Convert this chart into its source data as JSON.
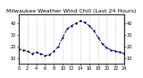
{
  "title": "Milwaukee Weather Wind Chill (Last 24 Hours)",
  "line_color": "#0000dd",
  "line_style": "--",
  "marker": ".",
  "marker_color": "#000000",
  "background_color": "#ffffff",
  "grid_color": "#999999",
  "x_values": [
    0,
    1,
    2,
    3,
    4,
    5,
    6,
    7,
    8,
    9,
    10,
    11,
    12,
    13,
    14,
    15,
    16,
    17,
    18,
    19,
    20,
    21,
    22,
    23,
    24
  ],
  "y_values": [
    18,
    17,
    16,
    14,
    15,
    14,
    12,
    13,
    16,
    20,
    28,
    35,
    38,
    40,
    42,
    41,
    38,
    34,
    28,
    22,
    19,
    17,
    16,
    15,
    14
  ],
  "ylim": [
    5,
    48
  ],
  "xlim": [
    0,
    24
  ],
  "title_fontsize": 4.5,
  "tick_fontsize": 3.5,
  "x_tick_interval": 2,
  "y_ticks": [
    10,
    20,
    30,
    40
  ]
}
